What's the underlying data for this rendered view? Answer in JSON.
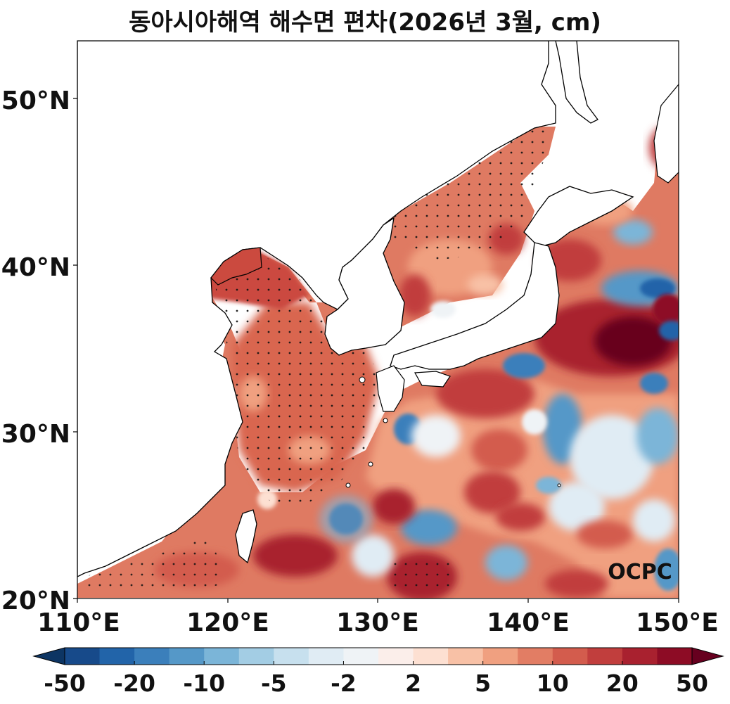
{
  "title": "동아시아해역 해수면 편차(2026년 3월, cm)",
  "watermark": "OCPC",
  "axes": {
    "lon_ticks": [
      "110°E",
      "120°E",
      "130°E",
      "140°E",
      "150°E"
    ],
    "lat_ticks": [
      "50°N",
      "40°N",
      "30°N",
      "20°N"
    ],
    "lon_range": [
      110,
      150
    ],
    "lat_range": [
      20,
      53.5
    ]
  },
  "colorbar": {
    "tick_labels": [
      "-50",
      "-20",
      "-10",
      "-5",
      "-2",
      "2",
      "5",
      "10",
      "20",
      "50"
    ],
    "colors": [
      "#174a8a",
      "#2264a9",
      "#3b7fbb",
      "#5598c8",
      "#7bb5d8",
      "#a3cde4",
      "#c7e0ee",
      "#e0ecf4",
      "#eff3f6",
      "#fbeeea",
      "#fde0d2",
      "#f8c1a6",
      "#f0a080",
      "#e27d64",
      "#d35c4d",
      "#c13e3d",
      "#a9212f",
      "#8d0c25"
    ],
    "under_color": "#0d3563",
    "over_color": "#67001f",
    "extend": "both"
  },
  "map": {
    "land_color": "#ffffff",
    "coastline_color": "#000000",
    "stipple_meaning": "significance dots"
  }
}
